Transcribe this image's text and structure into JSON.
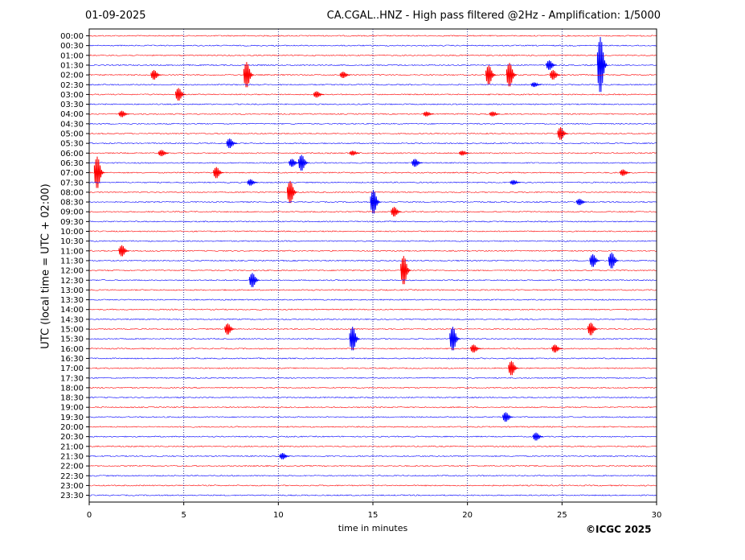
{
  "header": {
    "date": "01-09-2025",
    "title": "CA.CGAL..HNZ - High pass filtered @2Hz - Amplification: 1/5000"
  },
  "copyright": "©ICGC 2025",
  "colors": {
    "odd_rows": "#ff0000",
    "even_rows": "#0000ff",
    "grid": "#000080"
  },
  "chart_data": {
    "type": "line",
    "title": "CA.CGAL..HNZ - High pass filtered @2Hz - Amplification: 1/5000",
    "xlabel": "time in minutes",
    "ylabel": "UTC (local time = UTC + 02:00)",
    "xlim": [
      0,
      30
    ],
    "x_ticks": [
      0,
      5,
      10,
      15,
      20,
      25,
      30
    ],
    "grid": "vertical dotted lines at 5, 10, 15, 20, 25",
    "row_labels": [
      "00:00",
      "00:30",
      "01:00",
      "01:30",
      "02:00",
      "02:30",
      "03:00",
      "03:30",
      "04:00",
      "04:30",
      "05:00",
      "05:30",
      "06:00",
      "06:30",
      "07:00",
      "07:30",
      "08:00",
      "08:30",
      "09:00",
      "09:30",
      "10:00",
      "10:30",
      "11:00",
      "11:30",
      "12:00",
      "12:30",
      "13:00",
      "13:30",
      "14:00",
      "14:30",
      "15:00",
      "15:30",
      "16:00",
      "16:30",
      "17:00",
      "17:30",
      "18:00",
      "18:30",
      "19:00",
      "19:30",
      "20:00",
      "20:30",
      "21:00",
      "21:30",
      "22:00",
      "22:30",
      "23:00",
      "23:30"
    ],
    "row_colors": "alternating, starting with red at 00:00 then blue, (odd rows red / even rows blue by index: 00:00 red, 00:30 blue, ...)",
    "events": [
      {
        "row": "01:30",
        "minute": 24.3,
        "amp": 0.6
      },
      {
        "row": "01:30",
        "minute": 27.0,
        "amp": 3.5
      },
      {
        "row": "02:00",
        "minute": 3.4,
        "amp": 0.6
      },
      {
        "row": "02:00",
        "minute": 8.3,
        "amp": 1.6
      },
      {
        "row": "02:00",
        "minute": 13.4,
        "amp": 0.4
      },
      {
        "row": "02:00",
        "minute": 21.1,
        "amp": 1.2
      },
      {
        "row": "02:00",
        "minute": 22.2,
        "amp": 1.5
      },
      {
        "row": "02:00",
        "minute": 24.5,
        "amp": 0.6
      },
      {
        "row": "02:30",
        "minute": 23.5,
        "amp": 0.3
      },
      {
        "row": "03:00",
        "minute": 4.7,
        "amp": 0.8
      },
      {
        "row": "03:00",
        "minute": 12.0,
        "amp": 0.4
      },
      {
        "row": "04:00",
        "minute": 1.7,
        "amp": 0.4
      },
      {
        "row": "04:00",
        "minute": 17.8,
        "amp": 0.3
      },
      {
        "row": "04:00",
        "minute": 21.3,
        "amp": 0.3
      },
      {
        "row": "05:00",
        "minute": 24.9,
        "amp": 0.8
      },
      {
        "row": "05:30",
        "minute": 7.4,
        "amp": 0.6
      },
      {
        "row": "06:00",
        "minute": 3.8,
        "amp": 0.4
      },
      {
        "row": "06:00",
        "minute": 13.9,
        "amp": 0.3
      },
      {
        "row": "06:00",
        "minute": 19.7,
        "amp": 0.3
      },
      {
        "row": "06:30",
        "minute": 10.7,
        "amp": 0.5
      },
      {
        "row": "06:30",
        "minute": 11.2,
        "amp": 1.0
      },
      {
        "row": "06:30",
        "minute": 17.2,
        "amp": 0.5
      },
      {
        "row": "07:00",
        "minute": 0.4,
        "amp": 2.0
      },
      {
        "row": "07:00",
        "minute": 6.7,
        "amp": 0.7
      },
      {
        "row": "07:00",
        "minute": 28.2,
        "amp": 0.4
      },
      {
        "row": "07:30",
        "minute": 8.5,
        "amp": 0.4
      },
      {
        "row": "07:30",
        "minute": 22.4,
        "amp": 0.3
      },
      {
        "row": "08:00",
        "minute": 10.6,
        "amp": 1.4
      },
      {
        "row": "08:30",
        "minute": 15.0,
        "amp": 1.5
      },
      {
        "row": "08:30",
        "minute": 25.9,
        "amp": 0.4
      },
      {
        "row": "09:00",
        "minute": 16.1,
        "amp": 0.6
      },
      {
        "row": "11:00",
        "minute": 1.7,
        "amp": 0.7
      },
      {
        "row": "11:30",
        "minute": 26.6,
        "amp": 0.8
      },
      {
        "row": "11:30",
        "minute": 27.6,
        "amp": 1.0
      },
      {
        "row": "12:00",
        "minute": 16.6,
        "amp": 1.8
      },
      {
        "row": "12:30",
        "minute": 8.6,
        "amp": 0.9
      },
      {
        "row": "15:00",
        "minute": 7.3,
        "amp": 0.7
      },
      {
        "row": "15:00",
        "minute": 26.5,
        "amp": 0.8
      },
      {
        "row": "15:30",
        "minute": 13.9,
        "amp": 1.5
      },
      {
        "row": "15:30",
        "minute": 19.2,
        "amp": 1.5
      },
      {
        "row": "16:00",
        "minute": 20.3,
        "amp": 0.5
      },
      {
        "row": "16:00",
        "minute": 24.6,
        "amp": 0.5
      },
      {
        "row": "17:00",
        "minute": 22.3,
        "amp": 0.9
      },
      {
        "row": "19:30",
        "minute": 22.0,
        "amp": 0.6
      },
      {
        "row": "20:30",
        "minute": 23.6,
        "amp": 0.5
      },
      {
        "row": "21:30",
        "minute": 10.2,
        "amp": 0.4
      }
    ]
  }
}
